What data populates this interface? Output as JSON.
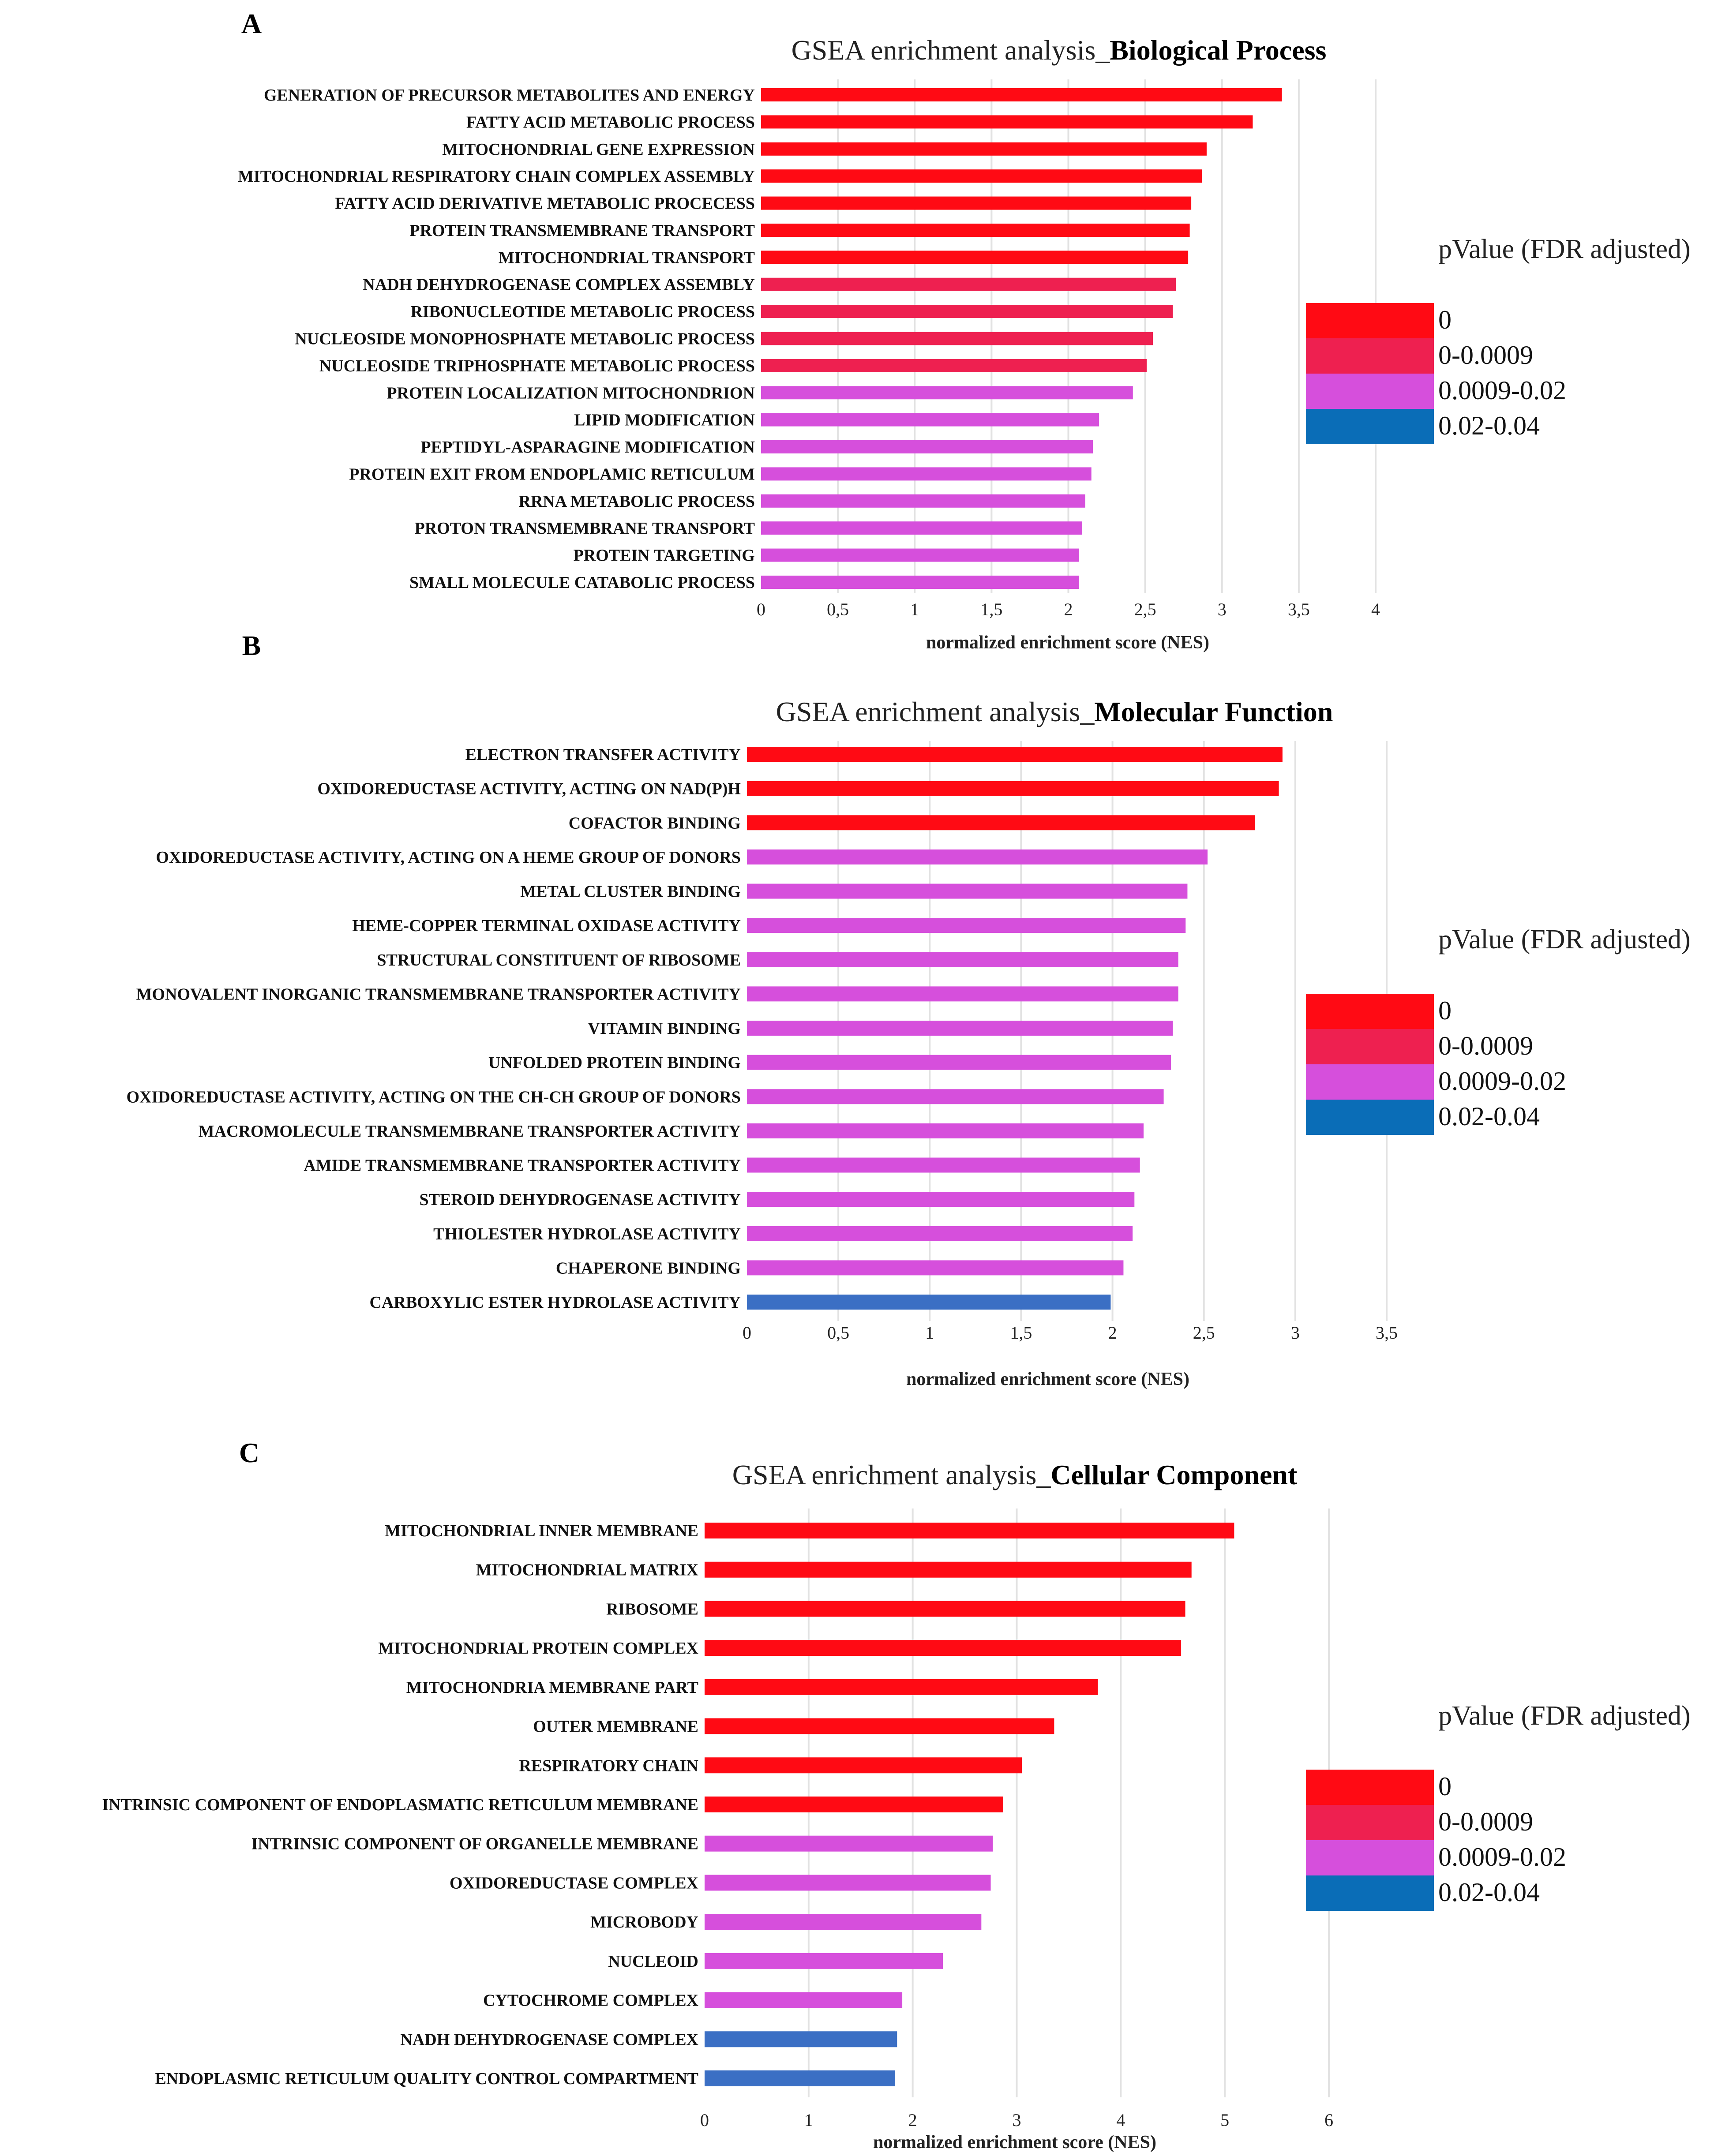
{
  "colors": {
    "p0": "#ff0a14",
    "p0_0009": "#ee2050",
    "p0009_002": "#d64fdc",
    "p002_004": "#3b6fc4",
    "legend_p002_004": "#0a6db7"
  },
  "chart_data": [
    {
      "type": "bar",
      "orientation": "horizontal",
      "panel": "A",
      "title_prefix": "GSEA enrichment analysis_",
      "title_bold": "Biological Process",
      "xlabel": "normalized enrichment score (NES)",
      "xlim": [
        0,
        4
      ],
      "xticks": [
        0,
        0.5,
        1,
        1.5,
        2,
        2.5,
        3,
        3.5,
        4
      ],
      "xtick_labels": [
        "0",
        "0,5",
        "1",
        "1,5",
        "2",
        "2,5",
        "3",
        "3,5",
        "4"
      ],
      "grid": true,
      "legend": {
        "title": "pValue (FDR adjusted)",
        "position": "right",
        "entries": [
          {
            "label": "0",
            "color_key": "p0"
          },
          {
            "label": "0-0.0009",
            "color_key": "p0_0009"
          },
          {
            "label": "0.0009-0.02",
            "color_key": "p0009_002"
          },
          {
            "label": "0.02-0.04",
            "color_key": "legend_p002_004"
          }
        ]
      },
      "categories": [
        "GENERATION OF PRECURSOR METABOLITES AND ENERGY",
        "FATTY ACID METABOLIC PROCESS",
        "MITOCHONDRIAL GENE EXPRESSION",
        "MITOCHONDRIAL RESPIRATORY CHAIN COMPLEX ASSEMBLY",
        "FATTY ACID DERIVATIVE METABOLIC PROCECESS",
        "PROTEIN TRANSMEMBRANE TRANSPORT",
        "MITOCHONDRIAL TRANSPORT",
        "NADH DEHYDROGENASE  COMPLEX ASSEMBLY",
        "RIBONUCLEOTIDE METABOLIC PROCESS",
        "NUCLEOSIDE MONOPHOSPHATE METABOLIC PROCESS",
        "NUCLEOSIDE TRIPHOSPHATE METABOLIC PROCESS",
        "PROTEIN LOCALIZATION MITOCHONDRION",
        "LIPID MODIFICATION",
        "PEPTIDYL-ASPARAGINE MODIFICATION",
        "PROTEIN EXIT FROM ENDOPLAMIC RETICULUM",
        "RRNA METABOLIC PROCESS",
        "PROTON TRANSMEMBRANE TRANSPORT",
        "PROTEIN TARGETING",
        "SMALL MOLECULE CATABOLIC PROCESS"
      ],
      "values": [
        3.39,
        3.2,
        2.9,
        2.87,
        2.8,
        2.79,
        2.78,
        2.7,
        2.68,
        2.55,
        2.51,
        2.42,
        2.2,
        2.16,
        2.15,
        2.11,
        2.09,
        2.07,
        2.07
      ],
      "pvalue_groups": [
        "p0",
        "p0",
        "p0",
        "p0",
        "p0",
        "p0",
        "p0",
        "p0_0009",
        "p0_0009",
        "p0_0009",
        "p0_0009",
        "p0009_002",
        "p0009_002",
        "p0009_002",
        "p0009_002",
        "p0009_002",
        "p0009_002",
        "p0009_002",
        "p0009_002"
      ]
    },
    {
      "type": "bar",
      "orientation": "horizontal",
      "panel": "B",
      "title_prefix": "GSEA enrichment analysis_",
      "title_bold": "Molecular Function",
      "xlabel": "normalized enrichment score (NES)",
      "xlim": [
        0,
        3.5
      ],
      "xticks": [
        0,
        0.5,
        1,
        1.5,
        2,
        2.5,
        3,
        3.5
      ],
      "xtick_labels": [
        "0",
        "0,5",
        "1",
        "1,5",
        "2",
        "2,5",
        "3",
        "3,5"
      ],
      "grid": true,
      "legend": {
        "title": "pValue (FDR adjusted)",
        "position": "right",
        "entries": [
          {
            "label": "0",
            "color_key": "p0"
          },
          {
            "label": "0-0.0009",
            "color_key": "p0_0009"
          },
          {
            "label": "0.0009-0.02",
            "color_key": "p0009_002"
          },
          {
            "label": "0.02-0.04",
            "color_key": "legend_p002_004"
          }
        ]
      },
      "categories": [
        "ELECTRON TRANSFER ACTIVITY",
        "OXIDOREDUCTASE ACTIVITY, ACTING ON NAD(P)H",
        "COFACTOR BINDING",
        "OXIDOREDUCTASE ACTIVITY, ACTING ON A HEME GROUP OF DONORS",
        "METAL CLUSTER BINDING",
        "HEME-COPPER TERMINAL OXIDASE ACTIVITY",
        "STRUCTURAL CONSTITUENT OF RIBOSOME",
        "MONOVALENT INORGANIC TRANSMEMBRANE TRANSPORTER ACTIVITY",
        "VITAMIN BINDING",
        "UNFOLDED PROTEIN BINDING",
        "OXIDOREDUCTASE ACTIVITY, ACTING ON THE CH-CH GROUP OF DONORS",
        "MACROMOLECULE TRANSMEMBRANE TRANSPORTER ACTIVITY",
        "AMIDE TRANSMEMBRANE TRANSPORTER ACTIVITY",
        "STEROID DEHYDROGENASE ACTIVITY",
        "THIOLESTER HYDROLASE ACTIVITY",
        "CHAPERONE BINDING",
        "CARBOXYLIC ESTER HYDROLASE ACTIVITY"
      ],
      "values": [
        2.93,
        2.91,
        2.78,
        2.52,
        2.41,
        2.4,
        2.36,
        2.36,
        2.33,
        2.32,
        2.28,
        2.17,
        2.15,
        2.12,
        2.11,
        2.06,
        1.99
      ],
      "pvalue_groups": [
        "p0",
        "p0",
        "p0",
        "p0009_002",
        "p0009_002",
        "p0009_002",
        "p0009_002",
        "p0009_002",
        "p0009_002",
        "p0009_002",
        "p0009_002",
        "p0009_002",
        "p0009_002",
        "p0009_002",
        "p0009_002",
        "p0009_002",
        "p002_004"
      ]
    },
    {
      "type": "bar",
      "orientation": "horizontal",
      "panel": "C",
      "title_prefix": "GSEA enrichment analysis_",
      "title_bold": "Cellular Component",
      "xlabel": "normalized enrichment score (NES)",
      "xlim": [
        0,
        6
      ],
      "xticks": [
        0,
        1,
        2,
        3,
        4,
        5,
        6
      ],
      "xtick_labels": [
        "0",
        "1",
        "2",
        "3",
        "4",
        "5",
        "6"
      ],
      "grid": true,
      "legend": {
        "title": "pValue (FDR adjusted)",
        "position": "right",
        "entries": [
          {
            "label": "0",
            "color_key": "p0"
          },
          {
            "label": "0-0.0009",
            "color_key": "p0_0009"
          },
          {
            "label": "0.0009-0.02",
            "color_key": "p0009_002"
          },
          {
            "label": "0.02-0.04",
            "color_key": "legend_p002_004"
          }
        ]
      },
      "categories": [
        "MITOCHONDRIAL INNER MEMBRANE",
        "MITOCHONDRIAL MATRIX",
        "RIBOSOME",
        "MITOCHONDRIAL PROTEIN COMPLEX",
        "MITOCHONDRIA MEMBRANE PART",
        "OUTER MEMBRANE",
        "RESPIRATORY CHAIN",
        "INTRINSIC COMPONENT OF ENDOPLASMATIC RETICULUM MEMBRANE",
        "INTRINSIC COMPONENT OF ORGANELLE MEMBRANE",
        "OXIDOREDUCTASE COMPLEX",
        "MICROBODY",
        "NUCLEOID",
        "CYTOCHROME COMPLEX",
        "NADH DEHYDROGENASE COMPLEX",
        "ENDOPLASMIC RETICULUM QUALITY CONTROL COMPARTMENT"
      ],
      "values": [
        5.09,
        4.68,
        4.62,
        4.58,
        3.78,
        3.36,
        3.05,
        2.87,
        2.77,
        2.75,
        2.66,
        2.29,
        1.9,
        1.85,
        1.83
      ],
      "pvalue_groups": [
        "p0",
        "p0",
        "p0",
        "p0",
        "p0",
        "p0",
        "p0",
        "p0",
        "p0009_002",
        "p0009_002",
        "p0009_002",
        "p0009_002",
        "p0009_002",
        "p002_004",
        "p002_004"
      ]
    }
  ]
}
